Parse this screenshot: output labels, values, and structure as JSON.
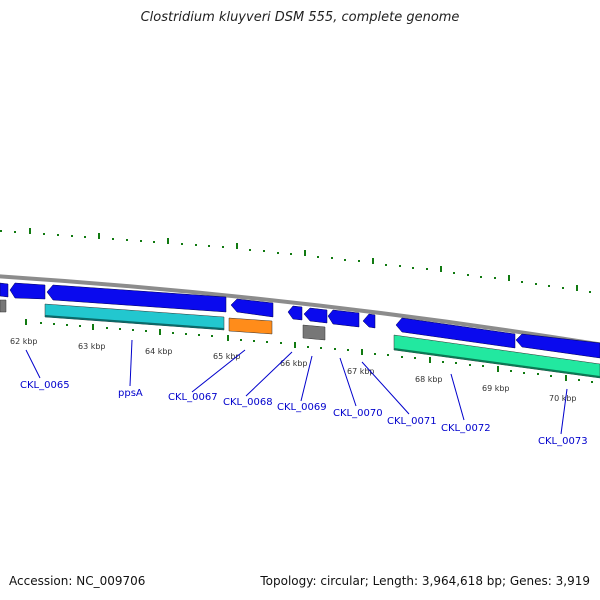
{
  "title": "Clostridium kluyveri DSM 555, complete genome",
  "footer": {
    "accession": "Accession: NC_009706",
    "summary": "Topology: circular; Length: 3,964,618 bp; Genes: 3,919"
  },
  "colors": {
    "backbone": "#8c8c8c",
    "cds_forward": "#0a0aee",
    "cds_reverse_teal": "#22c7cf",
    "cds_orange": "#ff8c1a",
    "cds_gray": "#777777",
    "cds_green": "#22e8a0",
    "tick": "#117a11",
    "label": "#0000cc"
  },
  "kbp_ticks": [
    "62 kbp",
    "63 kbp",
    "64 kbp",
    "65 kbp",
    "66 kbp",
    "67 kbp",
    "68 kbp",
    "69 kbp",
    "70 kbp"
  ],
  "gene_labels": [
    "CKL_0065",
    "ppsA",
    "CKL_0067",
    "CKL_0068",
    "CKL_0069",
    "CKL_0070",
    "CKL_0071",
    "CKL_0072",
    "CKL_0073"
  ]
}
